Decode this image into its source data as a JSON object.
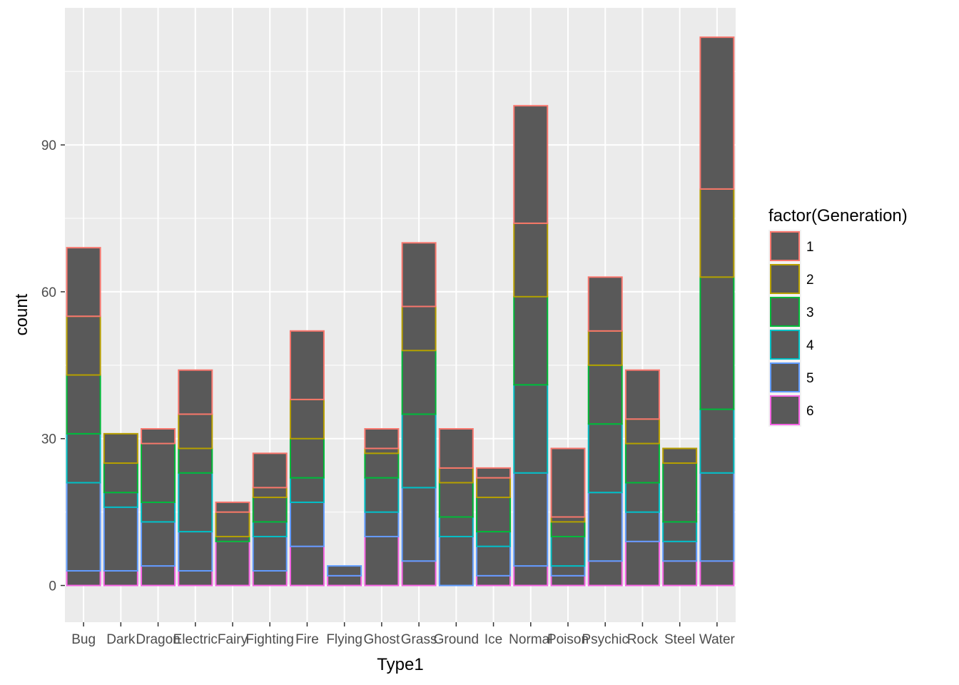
{
  "chart_data": {
    "type": "bar",
    "stacked": true,
    "title": "",
    "xlabel": "Type1",
    "ylabel": "count",
    "ylim": [
      -7.5,
      118
    ],
    "yticks": [
      0,
      30,
      60,
      90
    ],
    "grid": true,
    "background": "#EBEBEB",
    "bar_fill": "#595959",
    "legend": {
      "title": "factor(Generation)",
      "position": "right"
    },
    "categories": [
      "Bug",
      "Dark",
      "Dragon",
      "Electric",
      "Fairy",
      "Fighting",
      "Fire",
      "Flying",
      "Ghost",
      "Grass",
      "Ground",
      "Ice",
      "Normal",
      "Poison",
      "Psychic",
      "Rock",
      "Steel",
      "Water"
    ],
    "series": [
      {
        "name": "1",
        "color": "#F8766D",
        "values": [
          14,
          0,
          3,
          9,
          2,
          7,
          14,
          0,
          4,
          13,
          8,
          2,
          24,
          14,
          11,
          10,
          0,
          31
        ]
      },
      {
        "name": "2",
        "color": "#B79F00",
        "values": [
          12,
          6,
          0,
          7,
          5,
          2,
          8,
          0,
          1,
          9,
          3,
          4,
          15,
          1,
          7,
          5,
          3,
          18
        ]
      },
      {
        "name": "3",
        "color": "#00BA38",
        "values": [
          12,
          6,
          12,
          5,
          1,
          5,
          8,
          0,
          5,
          13,
          7,
          7,
          18,
          3,
          12,
          8,
          12,
          27
        ]
      },
      {
        "name": "4",
        "color": "#00BFC4",
        "values": [
          10,
          3,
          4,
          12,
          0,
          3,
          5,
          0,
          7,
          15,
          4,
          3,
          18,
          6,
          14,
          6,
          4,
          13
        ]
      },
      {
        "name": "5",
        "color": "#619CFF",
        "values": [
          18,
          13,
          9,
          8,
          0,
          7,
          9,
          2,
          5,
          15,
          10,
          6,
          19,
          2,
          14,
          6,
          4,
          18
        ]
      },
      {
        "name": "6",
        "color": "#F564E3",
        "values": [
          3,
          3,
          4,
          3,
          9,
          3,
          8,
          2,
          10,
          5,
          0,
          2,
          4,
          2,
          5,
          9,
          5,
          5
        ]
      }
    ]
  }
}
